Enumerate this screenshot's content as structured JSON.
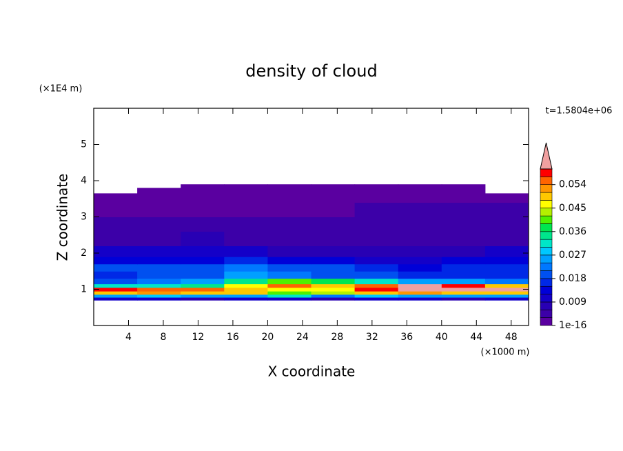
{
  "chart_data": {
    "type": "contourf",
    "title": "density of cloud",
    "x_label": "X coordinate",
    "y_label": "Z coordinate",
    "x_unit": "(×1000 m)",
    "y_unit": "(×1E4 m)",
    "annotation": "t=1.5804e+06",
    "xlim": [
      0,
      50
    ],
    "ylim": [
      0,
      6
    ],
    "xticks": [
      4,
      8,
      12,
      16,
      20,
      24,
      28,
      32,
      36,
      40,
      44,
      48
    ],
    "yticks": [
      1,
      2,
      3,
      4,
      5
    ],
    "field": {
      "x": [
        0,
        5,
        10,
        15,
        20,
        25,
        30,
        35,
        40,
        45,
        50
      ],
      "z": [
        0.7,
        0.78,
        0.86,
        0.95,
        1.05,
        1.15,
        1.3,
        1.5,
        1.7,
        1.9,
        2.2,
        2.6,
        3.0,
        3.4,
        3.65,
        3.8,
        3.9
      ],
      "values": [
        [
          0.009,
          0.009,
          0.008,
          0.009,
          0.01,
          0.008,
          0.009,
          0.009,
          0.008,
          0.009
        ],
        [
          0.025,
          0.027,
          0.024,
          0.026,
          0.03,
          0.022,
          0.027,
          0.025,
          0.024,
          0.026
        ],
        [
          0.05,
          0.052,
          0.05,
          0.048,
          0.04,
          0.042,
          0.05,
          0.052,
          0.05,
          0.05
        ],
        [
          0.058,
          0.056,
          0.055,
          0.05,
          0.045,
          0.046,
          0.058,
          0.062,
          0.062,
          0.06
        ],
        [
          0.03,
          0.032,
          0.035,
          0.045,
          0.055,
          0.05,
          0.055,
          0.06,
          0.058,
          0.05
        ],
        [
          0.02,
          0.022,
          0.025,
          0.035,
          0.04,
          0.038,
          0.03,
          0.025,
          0.024,
          0.022
        ],
        [
          0.016,
          0.018,
          0.02,
          0.024,
          0.022,
          0.02,
          0.018,
          0.016,
          0.015,
          0.016
        ],
        [
          0.02,
          0.018,
          0.02,
          0.022,
          0.02,
          0.018,
          0.016,
          0.014,
          0.015,
          0.016
        ],
        [
          0.014,
          0.013,
          0.014,
          0.015,
          0.012,
          0.012,
          0.011,
          0.01,
          0.012,
          0.013
        ],
        [
          0.01,
          0.009,
          0.01,
          0.009,
          0.008,
          0.008,
          0.008,
          0.007,
          0.008,
          0.009
        ],
        [
          0.005,
          0.005,
          0.006,
          0.005,
          0.005,
          0.004,
          0.004,
          0.005,
          0.005,
          0.005
        ],
        [
          0.004,
          0.004,
          0.004,
          0.003,
          0.003,
          0.004,
          0.004,
          0.004,
          0.004,
          0.004
        ],
        [
          0.002,
          0.002,
          0.002,
          0.002,
          0.002,
          0.002,
          0.003,
          0.003,
          0.003,
          0.003
        ],
        [
          0.001,
          0.001,
          0.001,
          0.001,
          0.001,
          0.001,
          0.001,
          0.001,
          0.001,
          0.001
        ],
        [
          0,
          0.001,
          0.001,
          0.001,
          0.001,
          0.001,
          0.001,
          0.001,
          0.001,
          0
        ],
        [
          0,
          0,
          0.0005,
          0.0005,
          0.0005,
          0.0005,
          0.0005,
          0.0005,
          0.0005,
          0
        ]
      ]
    },
    "colorbar": {
      "levels": [
        1e-16,
        0.003,
        0.006,
        0.009,
        0.012,
        0.015,
        0.018,
        0.021,
        0.024,
        0.027,
        0.03,
        0.033,
        0.036,
        0.039,
        0.042,
        0.045,
        0.048,
        0.051,
        0.054,
        0.057,
        0.06
      ],
      "colors": [
        "#5a00a0",
        "#3c00a8",
        "#2800b4",
        "#1400c8",
        "#0000d8",
        "#0028e6",
        "#0050f0",
        "#0078ff",
        "#00a0ff",
        "#00c8ff",
        "#00e6c8",
        "#00e68c",
        "#00e650",
        "#50f000",
        "#b4f000",
        "#ffff00",
        "#ffc800",
        "#ff9600",
        "#ff6400",
        "#ff0000"
      ],
      "over_color": "#f0a0a0",
      "ticks": [
        1e-16,
        0.009,
        0.018,
        0.027,
        0.036,
        0.045,
        0.054
      ]
    }
  }
}
